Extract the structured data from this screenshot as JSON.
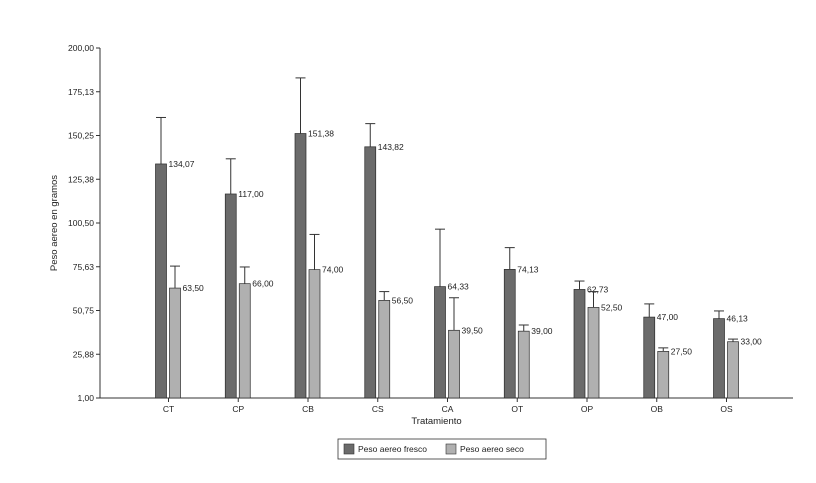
{
  "chart_data": {
    "type": "bar",
    "xlabel": "Tratamiento",
    "ylabel": "Peso aereo en gramos",
    "ylim": [
      1.0,
      200.0
    ],
    "yticks": [
      "1,00",
      "25,88",
      "50,75",
      "75,63",
      "100,50",
      "125,38",
      "150,25",
      "175,13",
      "200,00"
    ],
    "categories": [
      "CT",
      "CP",
      "CB",
      "CS",
      "CA",
      "OT",
      "OP",
      "OB",
      "OS"
    ],
    "series": [
      {
        "name": "Peso aereo fresco",
        "color": "#6b6b6b",
        "values": [
          134.07,
          117.0,
          151.38,
          143.82,
          64.33,
          74.13,
          62.73,
          47.0,
          46.13
        ],
        "labels": [
          "134,07",
          "117,00",
          "151,38",
          "143,82",
          "64,33",
          "74,13",
          "62,73",
          "47,00",
          "46,13"
        ],
        "error_upper": [
          160.5,
          137.0,
          183.0,
          157.0,
          97.0,
          86.5,
          67.5,
          54.5,
          50.5
        ]
      },
      {
        "name": "Peso aereo seco",
        "color": "#b0b0b0",
        "values": [
          63.5,
          66.0,
          74.0,
          56.5,
          39.5,
          39.0,
          52.5,
          27.5,
          33.0
        ],
        "labels": [
          "63,50",
          "66,00",
          "74,00",
          "56,50",
          "39,50",
          "39,00",
          "52,50",
          "27,50",
          "33,00"
        ],
        "error_upper": [
          76.0,
          75.5,
          94.0,
          61.5,
          58.0,
          42.5,
          61.5,
          29.5,
          34.5
        ]
      }
    ],
    "legend": "bottom-center",
    "grid": false
  }
}
